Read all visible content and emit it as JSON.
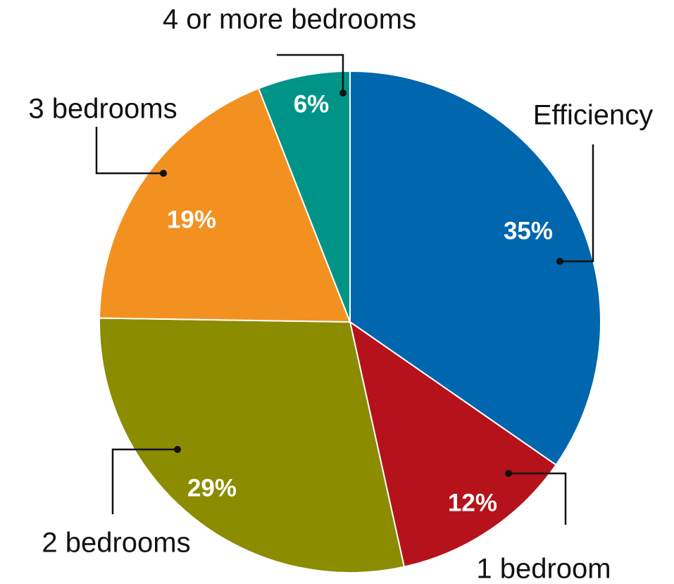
{
  "chart_data": {
    "type": "pie",
    "categories": [
      "Efficiency",
      "1 bedroom",
      "2 bedrooms",
      "3 bedrooms",
      "4 or more bedrooms"
    ],
    "values": [
      35,
      12,
      29,
      19,
      6
    ],
    "value_labels": [
      "35%",
      "12%",
      "29%",
      "19%",
      "6%"
    ],
    "colors": [
      "#0066AD",
      "#B5121B",
      "#8B8C00",
      "#F29120",
      "#009488"
    ],
    "start": "12 o'clock",
    "direction": "clockwise",
    "legend": "none"
  }
}
